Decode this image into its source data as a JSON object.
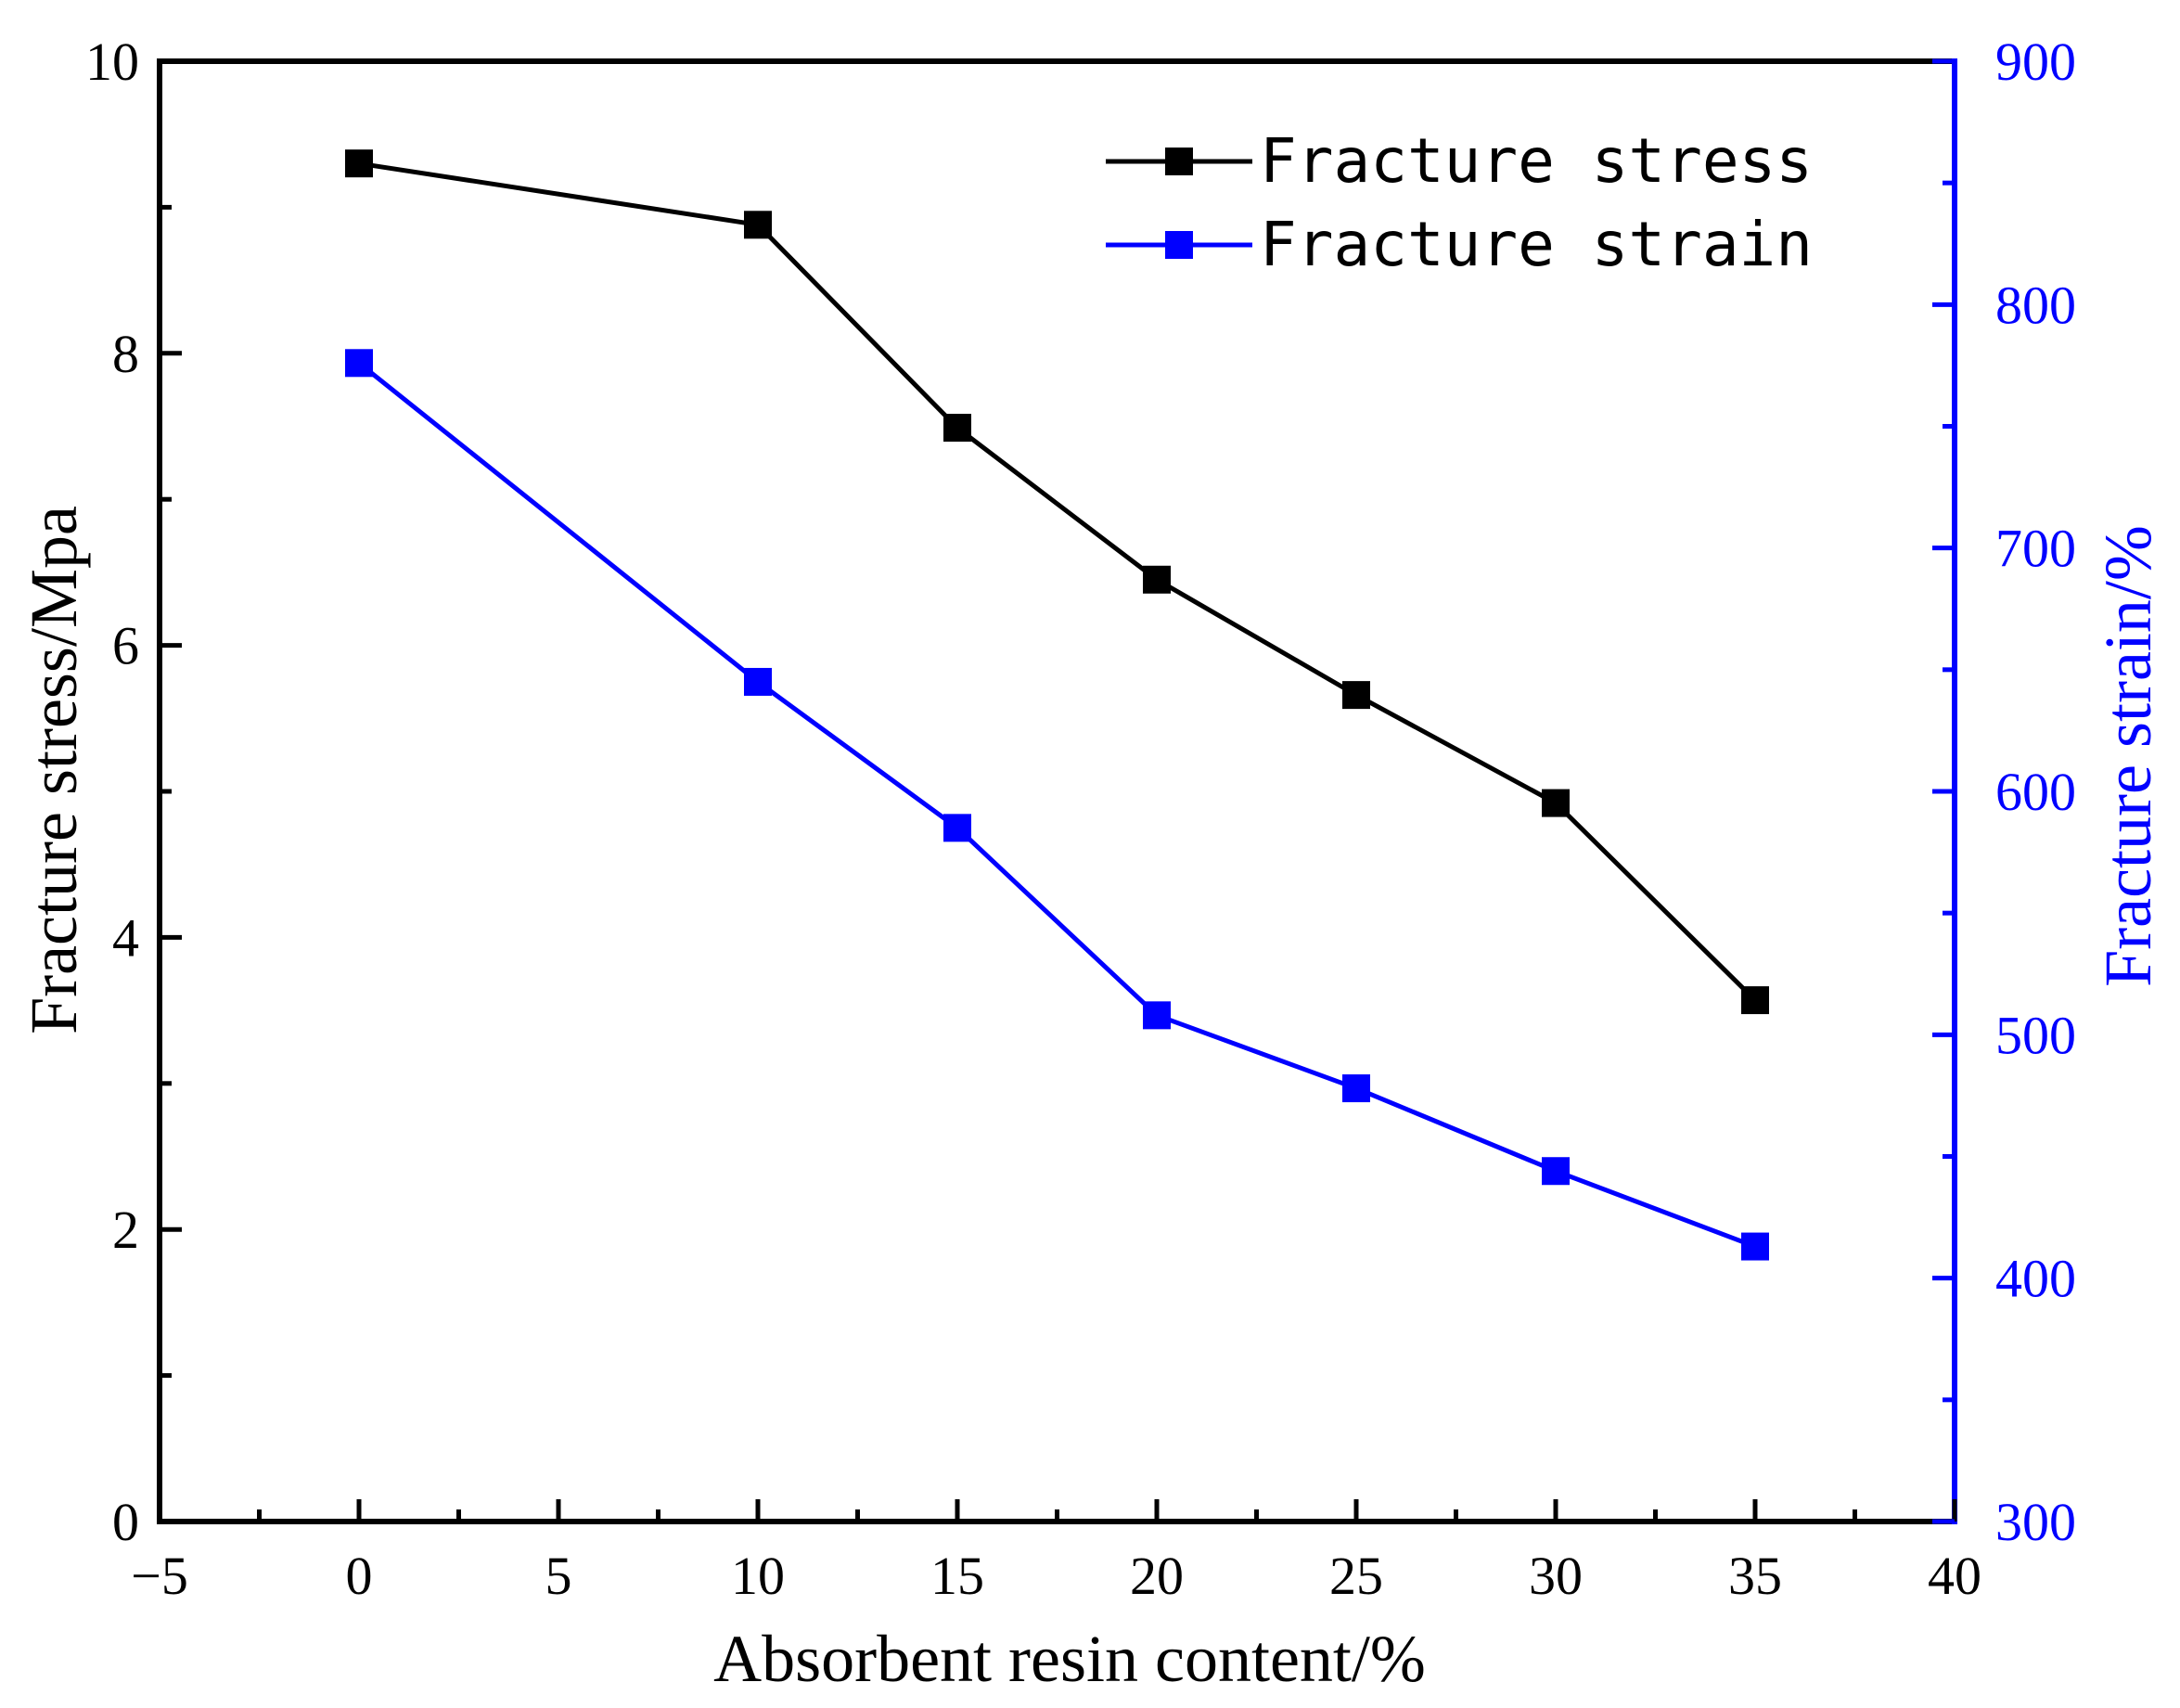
{
  "chart_data": {
    "type": "line",
    "xlabel": "Absorbent resin content/%",
    "ylabel_left": "Fracture stress/Mpa",
    "ylabel_right": "Fracture strain/%",
    "xlim": [
      -5,
      40
    ],
    "ylim_left": [
      0,
      10
    ],
    "ylim_right": [
      300,
      900
    ],
    "x_ticks": [
      "−5",
      "0",
      "5",
      "10",
      "15",
      "20",
      "25",
      "30",
      "35",
      "40"
    ],
    "x_tick_values": [
      -5,
      0,
      5,
      10,
      15,
      20,
      25,
      30,
      35,
      40
    ],
    "y_left_ticks": [
      "0",
      "2",
      "4",
      "6",
      "8",
      "10"
    ],
    "y_left_tick_values": [
      0,
      2,
      4,
      6,
      8,
      10
    ],
    "y_right_ticks": [
      "300",
      "400",
      "500",
      "600",
      "700",
      "800",
      "900"
    ],
    "y_right_tick_values": [
      300,
      400,
      500,
      600,
      700,
      800,
      900
    ],
    "legend_position": "top-right",
    "grid": false,
    "x": [
      0,
      10,
      15,
      20,
      25,
      30,
      35
    ],
    "series": [
      {
        "name": "Fracture stress",
        "axis": "left",
        "color": "#000000",
        "values": [
          9.3,
          8.88,
          7.49,
          6.45,
          5.66,
          4.92,
          3.57
        ]
      },
      {
        "name": "Fracture strain",
        "axis": "right",
        "color": "#0000ff",
        "values": [
          776,
          645,
          585,
          508,
          478,
          444,
          413
        ]
      }
    ]
  }
}
